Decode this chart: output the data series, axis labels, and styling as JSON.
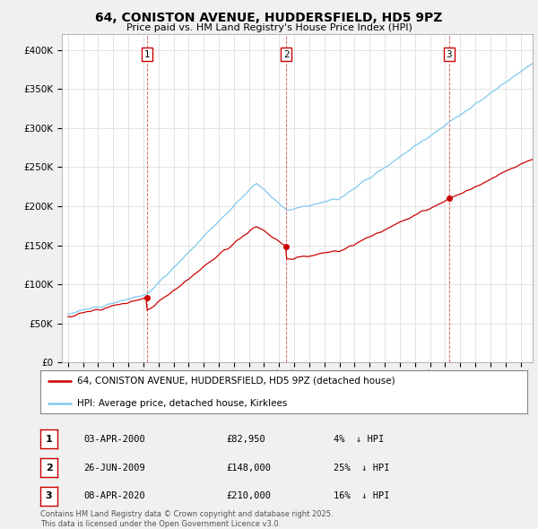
{
  "title": "64, CONISTON AVENUE, HUDDERSFIELD, HD5 9PZ",
  "subtitle": "Price paid vs. HM Land Registry's House Price Index (HPI)",
  "ylim": [
    0,
    420000
  ],
  "yticks": [
    0,
    50000,
    100000,
    150000,
    200000,
    250000,
    300000,
    350000,
    400000
  ],
  "ytick_labels": [
    "£0",
    "£50K",
    "£100K",
    "£150K",
    "£200K",
    "£250K",
    "£300K",
    "£350K",
    "£400K"
  ],
  "hpi_color": "#7ec8f0",
  "price_color": "#cc0000",
  "transactions": [
    {
      "num": 1,
      "date": "03-APR-2000",
      "year": 2000.25,
      "price": 82950,
      "pct": "4%",
      "dir": "↓"
    },
    {
      "num": 2,
      "date": "26-JUN-2009",
      "year": 2009.48,
      "price": 148000,
      "pct": "25%",
      "dir": "↓"
    },
    {
      "num": 3,
      "date": "08-APR-2020",
      "year": 2020.27,
      "price": 210000,
      "pct": "16%",
      "dir": "↓"
    }
  ],
  "legend_line1": "64, CONISTON AVENUE, HUDDERSFIELD, HD5 9PZ (detached house)",
  "legend_line2": "HPI: Average price, detached house, Kirklees",
  "footer": "Contains HM Land Registry data © Crown copyright and database right 2025.\nThis data is licensed under the Open Government Licence v3.0.",
  "background_color": "#f0f0f0",
  "plot_bg_color": "#ffffff",
  "xlim_left": 1994.6,
  "xlim_right": 2025.8
}
